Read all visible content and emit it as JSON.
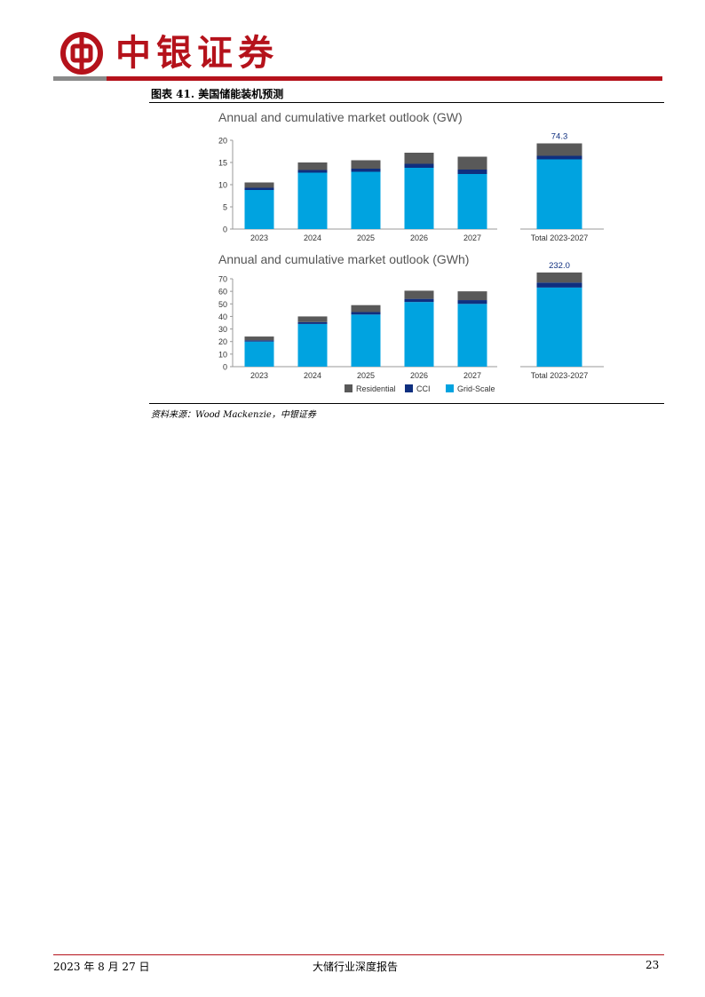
{
  "header": {
    "brand": "中银证券"
  },
  "figure": {
    "caption": "图表 41. 美国储能装机预测",
    "source": "资料来源：Wood Mackenzie，中银证券"
  },
  "footer": {
    "date": "2023 年 8 月 27 日",
    "title": "大储行业深度报告",
    "page": "23"
  },
  "colors": {
    "brand_red": "#b5121b",
    "residential": "#595959",
    "cci": "#0f2f7f",
    "grid_scale": "#00a3e0"
  },
  "chart_data": [
    {
      "type": "bar",
      "stacked": true,
      "title": "Annual and cumulative market outlook (GW)",
      "categories": [
        "2023",
        "2024",
        "2025",
        "2026",
        "2027",
        "Total 2023-2027"
      ],
      "series": [
        {
          "name": "Grid-Scale",
          "values": [
            8.8,
            12.7,
            12.9,
            13.8,
            12.4,
            15.7
          ]
        },
        {
          "name": "CCI",
          "values": [
            0.5,
            0.6,
            0.7,
            0.9,
            1.0,
            0.8
          ]
        },
        {
          "name": "Residential",
          "values": [
            1.2,
            1.7,
            1.9,
            2.5,
            2.9,
            2.8
          ]
        }
      ],
      "total_label": "74.3",
      "ylim": [
        0,
        20
      ],
      "yticks": [
        0,
        5,
        10,
        15,
        20
      ]
    },
    {
      "type": "bar",
      "stacked": true,
      "title": "Annual and cumulative market outlook (GWh)",
      "categories": [
        "2023",
        "2024",
        "2025",
        "2026",
        "2027",
        "Total 2023-2027"
      ],
      "series": [
        {
          "name": "Grid-Scale",
          "values": [
            20.0,
            34.0,
            41.5,
            51.5,
            50.0,
            63.0
          ]
        },
        {
          "name": "CCI",
          "values": [
            1.0,
            1.5,
            2.0,
            2.5,
            3.0,
            4.0
          ]
        },
        {
          "name": "Residential",
          "values": [
            3.0,
            4.5,
            5.5,
            6.5,
            7.0,
            8.0
          ]
        }
      ],
      "total_label": "232.0",
      "ylim": [
        0,
        70
      ],
      "yticks": [
        0,
        10,
        20,
        30,
        40,
        50,
        60,
        70
      ],
      "legend": [
        "Residential",
        "CCI",
        "Grid-Scale"
      ],
      "legend_position": "bottom"
    }
  ]
}
